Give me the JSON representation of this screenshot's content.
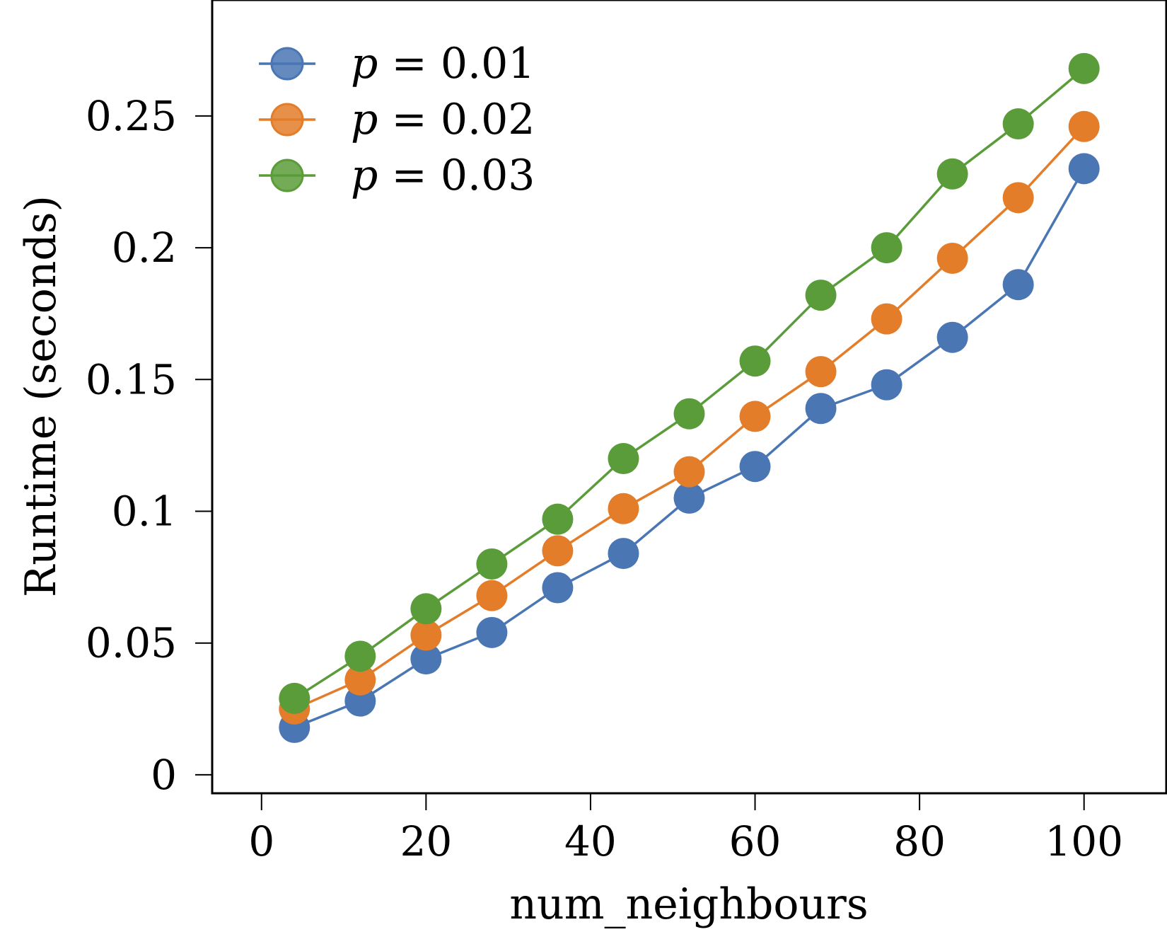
{
  "chart_data": {
    "type": "line",
    "xlabel": "num_neighbours",
    "ylabel": "Runtime (seconds)",
    "xlim": [
      -6,
      110
    ],
    "ylim": [
      -0.007,
      0.294
    ],
    "xticks": [
      0,
      20,
      40,
      60,
      80,
      100
    ],
    "xtick_labels": [
      "0",
      "20",
      "40",
      "60",
      "80",
      "100"
    ],
    "yticks": [
      0,
      0.05,
      0.1,
      0.15,
      0.2,
      0.25
    ],
    "ytick_labels": [
      "0",
      "0.05",
      "0.1",
      "0.15",
      "0.2",
      "0.25"
    ],
    "grid": false,
    "legend_position": "top-left",
    "x": [
      4,
      12,
      20,
      28,
      36,
      44,
      52,
      60,
      68,
      76,
      84,
      92,
      100
    ],
    "series": [
      {
        "name": "p = 0.01",
        "legend_var": "p",
        "legend_rest": " = 0.01",
        "color": "#4a76b4",
        "values": [
          0.018,
          0.028,
          0.044,
          0.054,
          0.071,
          0.084,
          0.105,
          0.117,
          0.139,
          0.148,
          0.166,
          0.186,
          0.23
        ]
      },
      {
        "name": "p = 0.02",
        "legend_var": "p",
        "legend_rest": " = 0.02",
        "color": "#e37d2a",
        "values": [
          0.025,
          0.036,
          0.053,
          0.068,
          0.085,
          0.101,
          0.115,
          0.136,
          0.153,
          0.173,
          0.196,
          0.219,
          0.246
        ]
      },
      {
        "name": "p = 0.03",
        "legend_var": "p",
        "legend_rest": " = 0.03",
        "color": "#5b9c3a",
        "values": [
          0.029,
          0.045,
          0.063,
          0.08,
          0.097,
          0.12,
          0.137,
          0.157,
          0.182,
          0.2,
          0.228,
          0.247,
          0.268
        ]
      }
    ]
  }
}
